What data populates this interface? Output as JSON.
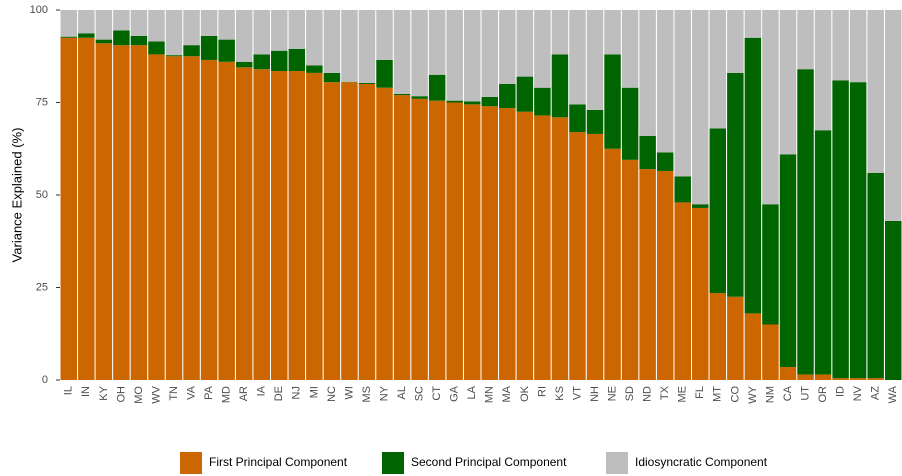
{
  "chart_data": {
    "type": "stacked_bar",
    "ylabel": "Variance Explained (%)",
    "categories": [
      "IL",
      "IN",
      "KY",
      "OH",
      "MO",
      "WV",
      "TN",
      "VA",
      "PA",
      "MD",
      "AR",
      "IA",
      "DE",
      "NJ",
      "MI",
      "NC",
      "WI",
      "MS",
      "NY",
      "AL",
      "SC",
      "CT",
      "GA",
      "LA",
      "MN",
      "MA",
      "OK",
      "RI",
      "KS",
      "VT",
      "NH",
      "NE",
      "SD",
      "ND",
      "TX",
      "ME",
      "FL",
      "MT",
      "CO",
      "WY",
      "NM",
      "CA",
      "UT",
      "OR",
      "ID",
      "NV",
      "AZ",
      "WA"
    ],
    "series": [
      {
        "name": "First Principal Component",
        "color": "#cc6600",
        "values": [
          92.5,
          92.5,
          91,
          90.5,
          90.5,
          88,
          87.5,
          87.5,
          86.5,
          86,
          84.5,
          84,
          83.5,
          83.5,
          83,
          80.5,
          80.5,
          80,
          79,
          77,
          76,
          75.5,
          75,
          74.5,
          74,
          73.5,
          72.5,
          71.5,
          71,
          67,
          66.5,
          62.5,
          59.5,
          57,
          56.5,
          48,
          46.5,
          23.5,
          22.5,
          18,
          15,
          3.5,
          1.5,
          1.5,
          0.5,
          0.5,
          0.5,
          0
        ]
      },
      {
        "name": "Second Principal Component",
        "color": "#006400",
        "values": [
          0.3,
          1.2,
          1,
          4,
          2.5,
          3.5,
          0.3,
          3,
          6.5,
          6,
          1.5,
          4,
          5.5,
          6,
          2,
          2.5,
          0.1,
          0.3,
          7.5,
          0.3,
          0.7,
          7,
          0.5,
          0.8,
          2.5,
          6.5,
          9.5,
          7.5,
          17,
          7.5,
          6.5,
          25.5,
          19.5,
          9,
          5,
          7,
          1,
          44.5,
          60.5,
          74.5,
          32.5,
          57.5,
          82.5,
          66,
          80.5,
          80,
          55.5,
          43
        ]
      },
      {
        "name": "Idiosyncratic Component",
        "color": "#bebebe",
        "values": [
          7.2,
          6.3,
          8,
          5.5,
          7,
          8.5,
          12.2,
          9.5,
          7,
          8,
          14,
          12,
          11,
          10.5,
          15,
          17,
          19.4,
          19.7,
          13.5,
          22.7,
          23.3,
          17.5,
          24.5,
          24.7,
          23.5,
          20,
          18,
          21,
          12,
          25.5,
          27,
          12,
          21,
          34,
          38.5,
          45,
          52.5,
          32,
          17,
          7.5,
          52.5,
          39,
          16,
          32.5,
          19,
          19.5,
          44,
          57
        ]
      }
    ],
    "ylim": [
      0,
      100
    ],
    "yticks": [
      0,
      25,
      50,
      75,
      100
    ]
  }
}
